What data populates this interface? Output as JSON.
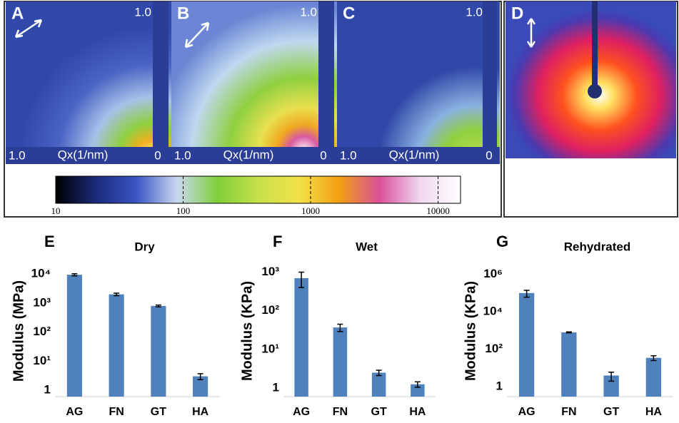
{
  "images": [
    {
      "label": "A",
      "top": "1.0",
      "left": "1.0",
      "xlabel": "Qx(1/nm)",
      "right": "0"
    },
    {
      "label": "B",
      "top": "1.0",
      "left": "1.0",
      "xlabel": "Qx(1/nm)",
      "right": "0"
    },
    {
      "label": "C",
      "top": "1.0",
      "left": "1.0",
      "xlabel": "Qx(1/nm)",
      "right": "0"
    },
    {
      "label": "D"
    }
  ],
  "chart_data": [
    {
      "type": "colorbar",
      "xlim": [
        10,
        15000
      ],
      "log": true,
      "xticks": [
        10,
        100,
        1000,
        10000
      ],
      "colors": [
        "#000000",
        "#1b2a7a",
        "#3a56c4",
        "#c9d8f0",
        "#7fcf3a",
        "#c6e04a",
        "#f2e24a",
        "#f2a012",
        "#d9509a",
        "#f0d8f0",
        "#ffffff"
      ]
    },
    {
      "type": "bar",
      "panel": "E",
      "title": "Dry",
      "ylabel": "Modulus  (MPa)",
      "log": true,
      "categories": [
        "AG",
        "FN",
        "GT",
        "HA"
      ],
      "values": [
        9500,
        2000,
        800,
        3
      ],
      "errors": [
        800,
        200,
        60,
        0.7
      ],
      "color": "#4f81bd",
      "ylim": [
        0.6,
        20000
      ],
      "yticks": [
        1,
        {
          "value": 10,
          "label": "10¹"
        },
        {
          "value": 100,
          "label": "10²"
        },
        {
          "value": 1000,
          "label": "10³"
        },
        {
          "value": 10000,
          "label": "10⁴"
        }
      ]
    },
    {
      "type": "bar",
      "panel": "F",
      "title": "Wet",
      "ylabel": "Modulus  (KPa)",
      "log": true,
      "categories": [
        "AG",
        "FN",
        "GT",
        "HA"
      ],
      "values": [
        700,
        37,
        2.5,
        1.25
      ],
      "errors": [
        300,
        8,
        0.4,
        0.2
      ],
      "color": "#4f81bd",
      "ylim": [
        0.6,
        1500
      ],
      "yticks": [
        1,
        {
          "value": 10,
          "label": "10¹"
        },
        {
          "value": 100,
          "label": "10²"
        },
        {
          "value": 1000,
          "label": "10³"
        }
      ]
    },
    {
      "type": "bar",
      "panel": "G",
      "title": "Rehydrated",
      "ylabel": "Modulus  (KPa)",
      "log": true,
      "categories": [
        "AG",
        "FN",
        "GT",
        "HA"
      ],
      "values": [
        100000,
        800,
        4,
        35
      ],
      "errors": [
        40000,
        50,
        2,
        10
      ],
      "color": "#4f81bd",
      "ylim": [
        0.3,
        3000000
      ],
      "yticks": [
        1,
        {
          "value": 100,
          "label": "10²"
        },
        {
          "value": 10000,
          "label": "10⁴"
        },
        {
          "value": 1000000,
          "label": "10⁶"
        }
      ]
    }
  ]
}
